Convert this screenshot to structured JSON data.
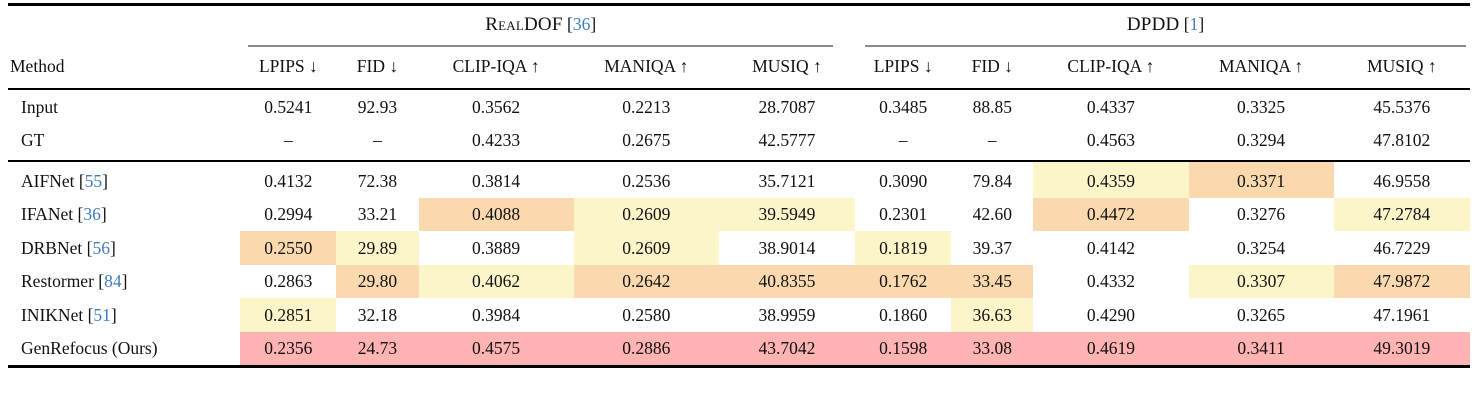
{
  "colors": {
    "cite": "#3d7dbf",
    "best": "#ffb3b3",
    "second": "#fad9ae",
    "third": "#fcf5c9"
  },
  "header": {
    "method_label": "Method",
    "groups": [
      {
        "title": "RealDOF",
        "cite_open": " [",
        "cite_num": "36",
        "cite_close": "]"
      },
      {
        "title": "DPDD",
        "cite_open": " [",
        "cite_num": "1",
        "cite_close": "]"
      }
    ],
    "metrics": [
      "LPIPS ↓",
      "FID ↓",
      "CLIP-IQA ↑",
      "MANIQA ↑",
      "MUSIQ ↑"
    ]
  },
  "rows": [
    {
      "method": "Input",
      "cells": [
        {
          "v": "0.5241"
        },
        {
          "v": "92.93"
        },
        {
          "v": "0.3562"
        },
        {
          "v": "0.2213"
        },
        {
          "v": "28.7087"
        },
        {
          "v": "0.3485"
        },
        {
          "v": "88.85"
        },
        {
          "v": "0.4337"
        },
        {
          "v": "0.3325"
        },
        {
          "v": "45.5376"
        }
      ]
    },
    {
      "method": "GT",
      "cells": [
        {
          "v": "–"
        },
        {
          "v": "–"
        },
        {
          "v": "0.4233"
        },
        {
          "v": "0.2675"
        },
        {
          "v": "42.5777"
        },
        {
          "v": "–"
        },
        {
          "v": "–"
        },
        {
          "v": "0.4563"
        },
        {
          "v": "0.3294"
        },
        {
          "v": "47.8102"
        }
      ]
    },
    {
      "method": "AIFNet",
      "cite_open": " [",
      "cite_num": "55",
      "cite_close": "]",
      "cells": [
        {
          "v": "0.4132"
        },
        {
          "v": "72.38"
        },
        {
          "v": "0.3814"
        },
        {
          "v": "0.2536"
        },
        {
          "v": "35.7121"
        },
        {
          "v": "0.3090"
        },
        {
          "v": "79.84"
        },
        {
          "v": "0.4359",
          "hl": "third"
        },
        {
          "v": "0.3371",
          "hl": "second"
        },
        {
          "v": "46.9558"
        }
      ]
    },
    {
      "method": "IFANet",
      "cite_open": " [",
      "cite_num": "36",
      "cite_close": "]",
      "cells": [
        {
          "v": "0.2994"
        },
        {
          "v": "33.21"
        },
        {
          "v": "0.4088",
          "hl": "second"
        },
        {
          "v": "0.2609",
          "hl": "third"
        },
        {
          "v": "39.5949",
          "hl": "third"
        },
        {
          "v": "0.2301"
        },
        {
          "v": "42.60"
        },
        {
          "v": "0.4472",
          "hl": "second"
        },
        {
          "v": "0.3276"
        },
        {
          "v": "47.2784",
          "hl": "third"
        }
      ]
    },
    {
      "method": "DRBNet",
      "cite_open": " [",
      "cite_num": "56",
      "cite_close": "]",
      "cells": [
        {
          "v": "0.2550",
          "hl": "second"
        },
        {
          "v": "29.89",
          "hl": "third"
        },
        {
          "v": "0.3889"
        },
        {
          "v": "0.2609",
          "hl": "third"
        },
        {
          "v": "38.9014"
        },
        {
          "v": "0.1819",
          "hl": "third"
        },
        {
          "v": "39.37"
        },
        {
          "v": "0.4142"
        },
        {
          "v": "0.3254"
        },
        {
          "v": "46.7229"
        }
      ]
    },
    {
      "method": "Restormer",
      "cite_open": " [",
      "cite_num": "84",
      "cite_close": "]",
      "cells": [
        {
          "v": "0.2863"
        },
        {
          "v": "29.80",
          "hl": "second"
        },
        {
          "v": "0.4062",
          "hl": "third"
        },
        {
          "v": "0.2642",
          "hl": "second"
        },
        {
          "v": "40.8355",
          "hl": "second"
        },
        {
          "v": "0.1762",
          "hl": "second"
        },
        {
          "v": "33.45",
          "hl": "second"
        },
        {
          "v": "0.4332"
        },
        {
          "v": "0.3307",
          "hl": "third"
        },
        {
          "v": "47.9872",
          "hl": "second"
        }
      ]
    },
    {
      "method": "INIKNet",
      "cite_open": " [",
      "cite_num": "51",
      "cite_close": "]",
      "cells": [
        {
          "v": "0.2851",
          "hl": "third"
        },
        {
          "v": "32.18"
        },
        {
          "v": "0.3984"
        },
        {
          "v": "0.2580"
        },
        {
          "v": "38.9959"
        },
        {
          "v": "0.1860"
        },
        {
          "v": "36.63",
          "hl": "third"
        },
        {
          "v": "0.4290"
        },
        {
          "v": "0.3265"
        },
        {
          "v": "47.1961"
        }
      ]
    },
    {
      "method": "GenRefocus (Ours)",
      "cells": [
        {
          "v": "0.2356",
          "hl": "best"
        },
        {
          "v": "24.73",
          "hl": "best"
        },
        {
          "v": "0.4575",
          "hl": "best"
        },
        {
          "v": "0.2886",
          "hl": "best"
        },
        {
          "v": "43.7042",
          "hl": "best"
        },
        {
          "v": "0.1598",
          "hl": "best"
        },
        {
          "v": "33.08",
          "hl": "best"
        },
        {
          "v": "0.4619",
          "hl": "best"
        },
        {
          "v": "0.3411",
          "hl": "best"
        },
        {
          "v": "49.3019",
          "hl": "best"
        }
      ]
    }
  ]
}
